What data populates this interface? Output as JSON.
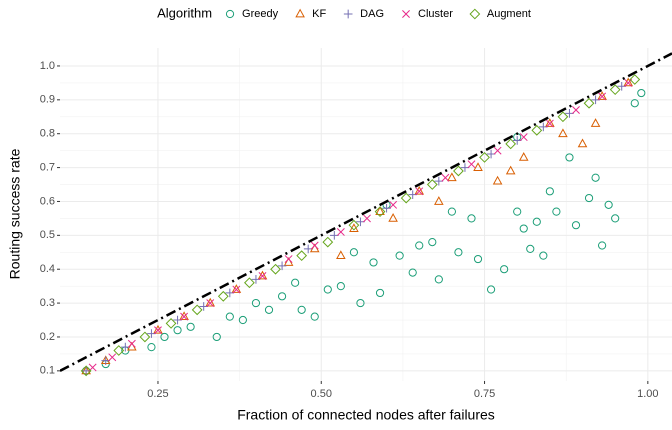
{
  "chart_data": {
    "type": "scatter",
    "x_label": "Fraction of connected nodes after failures",
    "y_label": "Routing success rate",
    "legend_title": "Algorithm",
    "legend": "top",
    "grid": true,
    "xlim": [
      0.1,
      1.037
    ],
    "ylim": [
      0.07,
      1.053
    ],
    "xticks": [
      0.25,
      {
        "value": 0.5,
        "label": "0.50"
      },
      0.75,
      {
        "value": 1,
        "label": "1.00"
      }
    ],
    "yticks": [
      0.1,
      0.2,
      0.3,
      0.4,
      0.5,
      0.6,
      0.7,
      0.8,
      0.9,
      {
        "value": 1,
        "label": "1.0"
      }
    ],
    "reference_line": {
      "slope": 1,
      "intercept": 0
    },
    "series": [
      {
        "name": "Greedy",
        "color": "#1b9e77",
        "marker": "circle",
        "x": [
          0.14,
          0.17,
          0.2,
          0.24,
          0.26,
          0.28,
          0.3,
          0.34,
          0.36,
          0.38,
          0.4,
          0.42,
          0.44,
          0.46,
          0.47,
          0.49,
          0.51,
          0.53,
          0.55,
          0.56,
          0.58,
          0.59,
          0.62,
          0.64,
          0.65,
          0.67,
          0.68,
          0.7,
          0.71,
          0.73,
          0.74,
          0.76,
          0.78,
          0.8,
          0.81,
          0.82,
          0.83,
          0.84,
          0.85,
          0.86,
          0.88,
          0.89,
          0.91,
          0.92,
          0.93,
          0.94,
          0.95,
          0.98,
          0.99,
          0.6,
          0.8
        ],
        "values": [
          0.1,
          0.12,
          0.16,
          0.17,
          0.2,
          0.22,
          0.23,
          0.2,
          0.26,
          0.25,
          0.3,
          0.28,
          0.32,
          0.36,
          0.28,
          0.26,
          0.34,
          0.35,
          0.45,
          0.3,
          0.42,
          0.33,
          0.44,
          0.39,
          0.47,
          0.48,
          0.37,
          0.57,
          0.45,
          0.55,
          0.43,
          0.34,
          0.4,
          0.57,
          0.52,
          0.46,
          0.54,
          0.44,
          0.63,
          0.57,
          0.73,
          0.53,
          0.61,
          0.67,
          0.47,
          0.59,
          0.55,
          0.89,
          0.92,
          0.59,
          0.79
        ]
      },
      {
        "name": "KF",
        "color": "#d95f02",
        "marker": "triangle",
        "x": [
          0.14,
          0.17,
          0.21,
          0.25,
          0.29,
          0.33,
          0.37,
          0.41,
          0.45,
          0.49,
          0.53,
          0.55,
          0.59,
          0.61,
          0.65,
          0.68,
          0.7,
          0.74,
          0.77,
          0.79,
          0.81,
          0.85,
          0.87,
          0.9,
          0.92,
          0.93,
          0.97
        ],
        "values": [
          0.1,
          0.13,
          0.17,
          0.22,
          0.26,
          0.3,
          0.34,
          0.38,
          0.42,
          0.46,
          0.44,
          0.52,
          0.57,
          0.55,
          0.63,
          0.6,
          0.67,
          0.7,
          0.66,
          0.69,
          0.73,
          0.83,
          0.8,
          0.77,
          0.83,
          0.91,
          0.95
        ]
      },
      {
        "name": "DAG",
        "color": "#7570b3",
        "marker": "plus",
        "x": [
          0.14,
          0.17,
          0.2,
          0.24,
          0.28,
          0.32,
          0.36,
          0.4,
          0.44,
          0.48,
          0.52,
          0.56,
          0.6,
          0.64,
          0.68,
          0.72,
          0.76,
          0.8,
          0.84,
          0.88,
          0.92,
          0.96
        ],
        "values": [
          0.1,
          0.13,
          0.17,
          0.21,
          0.25,
          0.29,
          0.33,
          0.37,
          0.41,
          0.46,
          0.5,
          0.54,
          0.58,
          0.62,
          0.66,
          0.7,
          0.74,
          0.78,
          0.82,
          0.86,
          0.9,
          0.94
        ]
      },
      {
        "name": "Cluster",
        "color": "#e7298a",
        "marker": "x",
        "x": [
          0.15,
          0.18,
          0.21,
          0.25,
          0.29,
          0.33,
          0.37,
          0.41,
          0.45,
          0.49,
          0.53,
          0.57,
          0.61,
          0.65,
          0.69,
          0.73,
          0.77,
          0.81,
          0.85,
          0.89,
          0.93,
          0.97
        ],
        "values": [
          0.11,
          0.14,
          0.18,
          0.22,
          0.26,
          0.3,
          0.34,
          0.38,
          0.43,
          0.47,
          0.51,
          0.55,
          0.59,
          0.63,
          0.67,
          0.71,
          0.75,
          0.79,
          0.83,
          0.87,
          0.91,
          0.95
        ]
      },
      {
        "name": "Augment",
        "color": "#66a61e",
        "marker": "diamond",
        "x": [
          0.14,
          0.19,
          0.23,
          0.27,
          0.31,
          0.35,
          0.39,
          0.43,
          0.47,
          0.51,
          0.55,
          0.59,
          0.63,
          0.67,
          0.71,
          0.75,
          0.79,
          0.83,
          0.87,
          0.91,
          0.95,
          0.98
        ],
        "values": [
          0.1,
          0.16,
          0.2,
          0.24,
          0.28,
          0.32,
          0.36,
          0.4,
          0.44,
          0.48,
          0.53,
          0.57,
          0.61,
          0.65,
          0.69,
          0.73,
          0.77,
          0.81,
          0.85,
          0.89,
          0.93,
          0.96
        ]
      }
    ]
  }
}
